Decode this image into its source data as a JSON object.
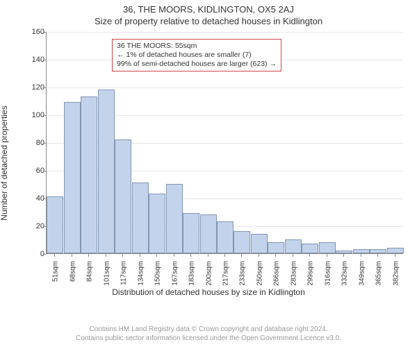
{
  "title": "36, THE MOORS, KIDLINGTON, OX5 2AJ",
  "subtitle": "Size of property relative to detached houses in Kidlington",
  "y_label": "Number of detached properties",
  "x_label": "Distribution of detached houses by size in Kidlington",
  "annotation": {
    "line1": "36 THE MOORS: 55sqm",
    "line2": "← 1% of detached houses are smaller (7)",
    "line3": "99% of semi-detached houses are larger (623) →"
  },
  "chart": {
    "type": "histogram",
    "ylim": [
      0,
      160
    ],
    "ytick_step": 20,
    "background_color": "#ffffff",
    "grid_color": "#e6e6e6",
    "axis_color": "#888888",
    "bar_fill": "#c2d3eb",
    "bar_border": "#8196b4",
    "annotation_border": "#cc4444",
    "x_categories": [
      "51sqm",
      "68sqm",
      "84sqm",
      "101sqm",
      "117sqm",
      "134sqm",
      "150sqm",
      "167sqm",
      "183sqm",
      "200sqm",
      "217sqm",
      "233sqm",
      "250sqm",
      "266sqm",
      "283sqm",
      "299sqm",
      "316sqm",
      "332sqm",
      "349sqm",
      "365sqm",
      "382sqm"
    ],
    "values": [
      41,
      109,
      113,
      118,
      82,
      51,
      43,
      50,
      29,
      28,
      23,
      16,
      14,
      8,
      10,
      7,
      8,
      2,
      3,
      3,
      4
    ],
    "bar_width_ratio": 0.98
  },
  "footer": {
    "line1": "Contains HM Land Registry data © Crown copyright and database right 2024.",
    "line2": "Contains public sector information licensed under the Open Government Licence v3.0."
  },
  "fonts": {
    "title_pt": 13,
    "axis_label_pt": 12,
    "tick_pt": 10,
    "annotation_pt": 10.5,
    "footer_pt": 10
  }
}
